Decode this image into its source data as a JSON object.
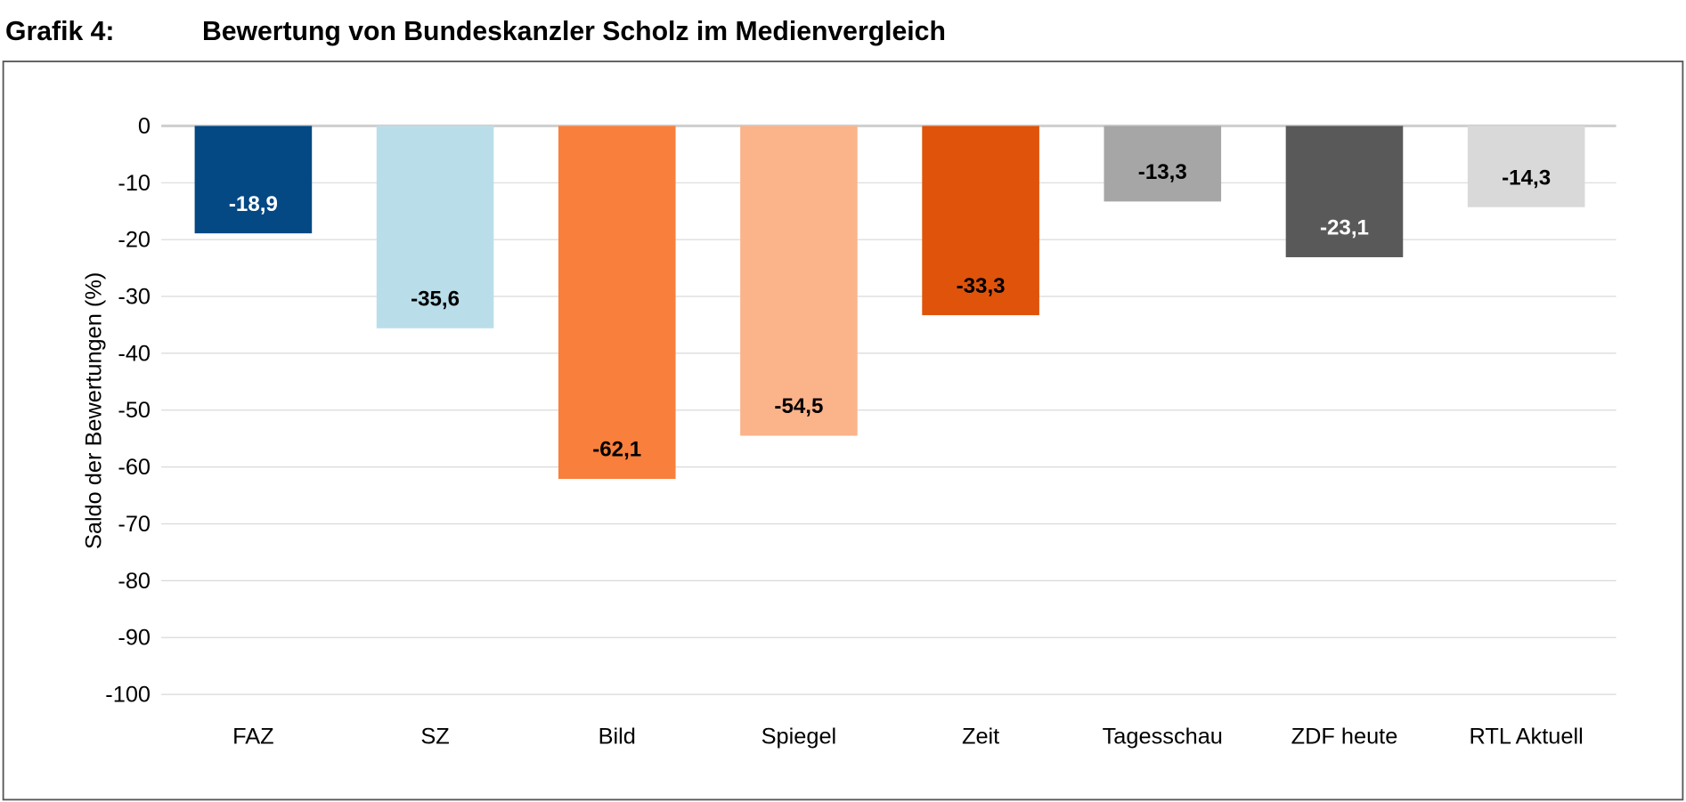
{
  "chart_data": {
    "type": "bar",
    "figure_label": "Grafik 4:",
    "title": "Bewertung von Bundeskanzler Scholz im Medienvergleich",
    "xlabel": "",
    "ylabel": "Saldo der Bewertungen (%)",
    "ylim": [
      -100,
      0
    ],
    "yticks": [
      0,
      -10,
      -20,
      -30,
      -40,
      -50,
      -60,
      -70,
      -80,
      -90,
      -100
    ],
    "grid": true,
    "legend": "none",
    "categories": [
      "FAZ",
      "SZ",
      "Bild",
      "Spiegel",
      "Zeit",
      "Tagesschau",
      "ZDF heute",
      "RTL Aktuell"
    ],
    "values": [
      -18.9,
      -35.6,
      -62.1,
      -54.5,
      -33.3,
      -13.3,
      -23.1,
      -14.3
    ],
    "data_labels": [
      "-18,9",
      "-35,6",
      "-62,1",
      "-54,5",
      "-33,3",
      "-13,3",
      "-23,1",
      "-14,3"
    ],
    "colors": [
      "#044884",
      "#badee9",
      "#f97f3c",
      "#fbb38a",
      "#df530b",
      "#a6a6a6",
      "#595959",
      "#d9d9d9"
    ],
    "label_colors": [
      "#ffffff",
      "#000000",
      "#000000",
      "#000000",
      "#000000",
      "#000000",
      "#ffffff",
      "#000000"
    ]
  }
}
